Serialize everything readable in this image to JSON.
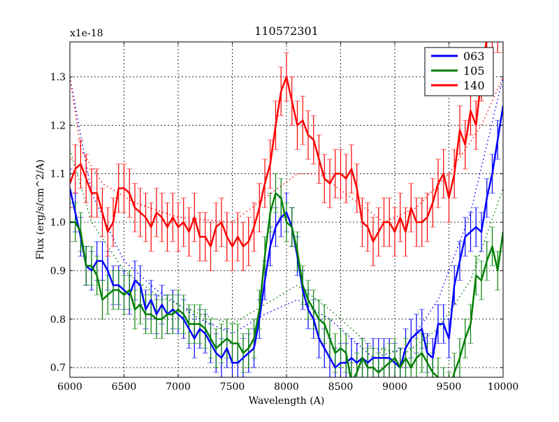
{
  "chart_data": {
    "type": "line",
    "title": "110572301",
    "xlabel": "Wavelength (A)",
    "ylabel": "Flux (erg/s/cm^2/A)",
    "y_offset_label": "x1e-18",
    "xlim": [
      6000,
      10000
    ],
    "ylim": [
      0.68,
      1.372
    ],
    "xticks": [
      6000,
      6500,
      7000,
      7500,
      8000,
      8500,
      9000,
      9500,
      10000
    ],
    "xtick_labels": [
      "6000",
      "6500",
      "7000",
      "7500",
      "8000",
      "8500",
      "9000",
      "9500",
      "10000"
    ],
    "yticks": [
      0.7,
      0.8,
      0.9,
      1.0,
      1.1,
      1.2,
      1.3
    ],
    "ytick_labels": [
      "0.7",
      "0.8",
      "0.9",
      "1.0",
      "1.1",
      "1.2",
      "1.3"
    ],
    "grid": true,
    "legend_position": "top-right",
    "x_start": 6000,
    "x_step": 50,
    "series": [
      {
        "name": "063",
        "color": "#0000ff",
        "err": 0.04,
        "values": [
          1.07,
          1.02,
          0.97,
          0.91,
          0.9,
          0.92,
          0.92,
          0.9,
          0.87,
          0.87,
          0.86,
          0.85,
          0.88,
          0.87,
          0.82,
          0.84,
          0.81,
          0.83,
          0.81,
          0.82,
          0.81,
          0.8,
          0.78,
          0.76,
          0.78,
          0.77,
          0.75,
          0.73,
          0.72,
          0.74,
          0.71,
          0.71,
          0.72,
          0.73,
          0.74,
          0.8,
          0.88,
          0.95,
          0.99,
          1.01,
          1.02,
          0.99,
          0.93,
          0.86,
          0.82,
          0.8,
          0.76,
          0.74,
          0.72,
          0.7,
          0.71,
          0.71,
          0.72,
          0.71,
          0.72,
          0.71,
          0.72,
          0.72,
          0.72,
          0.72,
          0.71,
          0.7,
          0.74,
          0.76,
          0.77,
          0.78,
          0.73,
          0.72,
          0.79,
          0.79,
          0.76,
          0.87,
          0.92,
          0.97,
          0.98,
          0.99,
          0.98,
          1.05,
          1.1,
          1.17,
          1.24
        ],
        "continuum": [
          [
            6000,
            1.3
          ],
          [
            6200,
            1.06
          ],
          [
            6500,
            0.92
          ],
          [
            6800,
            0.86
          ],
          [
            7200,
            0.8
          ],
          [
            7500,
            0.77
          ],
          [
            7800,
            0.81
          ],
          [
            8100,
            0.84
          ],
          [
            8400,
            0.8
          ],
          [
            8800,
            0.72
          ],
          [
            9100,
            0.74
          ],
          [
            9400,
            0.84
          ],
          [
            9700,
            1.02
          ],
          [
            10000,
            1.3
          ]
        ]
      },
      {
        "name": "105",
        "color": "#008000",
        "err": 0.04,
        "values": [
          1.0,
          1.0,
          0.98,
          0.91,
          0.91,
          0.89,
          0.84,
          0.85,
          0.86,
          0.86,
          0.85,
          0.86,
          0.82,
          0.83,
          0.81,
          0.81,
          0.8,
          0.8,
          0.81,
          0.81,
          0.82,
          0.81,
          0.79,
          0.79,
          0.79,
          0.78,
          0.76,
          0.74,
          0.75,
          0.76,
          0.75,
          0.75,
          0.73,
          0.74,
          0.76,
          0.82,
          0.93,
          1.02,
          1.06,
          1.05,
          1.0,
          0.99,
          0.94,
          0.87,
          0.84,
          0.82,
          0.8,
          0.79,
          0.76,
          0.73,
          0.74,
          0.73,
          0.67,
          0.69,
          0.72,
          0.7,
          0.7,
          0.69,
          0.7,
          0.71,
          0.72,
          0.7,
          0.72,
          0.7,
          0.72,
          0.73,
          0.71,
          0.69,
          0.68,
          0.66,
          0.65,
          0.69,
          0.72,
          0.76,
          0.79,
          0.89,
          0.88,
          0.92,
          0.95,
          0.9,
          0.98
        ],
        "continuum": [
          [
            6000,
            1.15
          ],
          [
            6200,
            1.0
          ],
          [
            6500,
            0.9
          ],
          [
            6800,
            0.85
          ],
          [
            7200,
            0.81
          ],
          [
            7500,
            0.79
          ],
          [
            7800,
            0.83
          ],
          [
            8100,
            0.87
          ],
          [
            8400,
            0.82
          ],
          [
            8800,
            0.74
          ],
          [
            9100,
            0.73
          ],
          [
            9400,
            0.78
          ],
          [
            9700,
            0.88
          ],
          [
            10000,
            1.07
          ]
        ]
      },
      {
        "name": "140",
        "color": "#ff0000",
        "err": 0.05,
        "values": [
          1.08,
          1.11,
          1.12,
          1.09,
          1.06,
          1.06,
          1.02,
          0.98,
          1.0,
          1.07,
          1.07,
          1.06,
          1.03,
          1.02,
          1.01,
          0.99,
          1.02,
          1.01,
          0.99,
          1.01,
          0.99,
          1.0,
          0.98,
          1.01,
          0.97,
          0.97,
          0.95,
          0.99,
          1.0,
          0.97,
          0.95,
          0.97,
          0.95,
          0.96,
          0.99,
          1.03,
          1.08,
          1.12,
          1.2,
          1.27,
          1.3,
          1.25,
          1.2,
          1.21,
          1.18,
          1.17,
          1.13,
          1.09,
          1.08,
          1.1,
          1.1,
          1.09,
          1.11,
          1.07,
          1.0,
          0.99,
          0.96,
          0.98,
          1.0,
          1.0,
          0.98,
          1.01,
          0.98,
          1.03,
          1.0,
          1.0,
          1.01,
          1.04,
          1.08,
          1.1,
          1.05,
          1.1,
          1.19,
          1.16,
          1.23,
          1.2,
          1.3,
          1.38,
          1.4,
          1.4,
          1.4
        ],
        "continuum": [
          [
            6000,
            1.3
          ],
          [
            6100,
            1.15
          ],
          [
            6300,
            1.08
          ],
          [
            6600,
            1.04
          ],
          [
            7000,
            1.01
          ],
          [
            7500,
            1.0
          ],
          [
            7800,
            1.05
          ],
          [
            8100,
            1.1
          ],
          [
            8300,
            1.1
          ],
          [
            8600,
            1.05
          ],
          [
            8900,
            1.0
          ],
          [
            9200,
            1.03
          ],
          [
            9500,
            1.1
          ],
          [
            9800,
            1.2
          ],
          [
            10000,
            1.3
          ]
        ]
      }
    ]
  }
}
